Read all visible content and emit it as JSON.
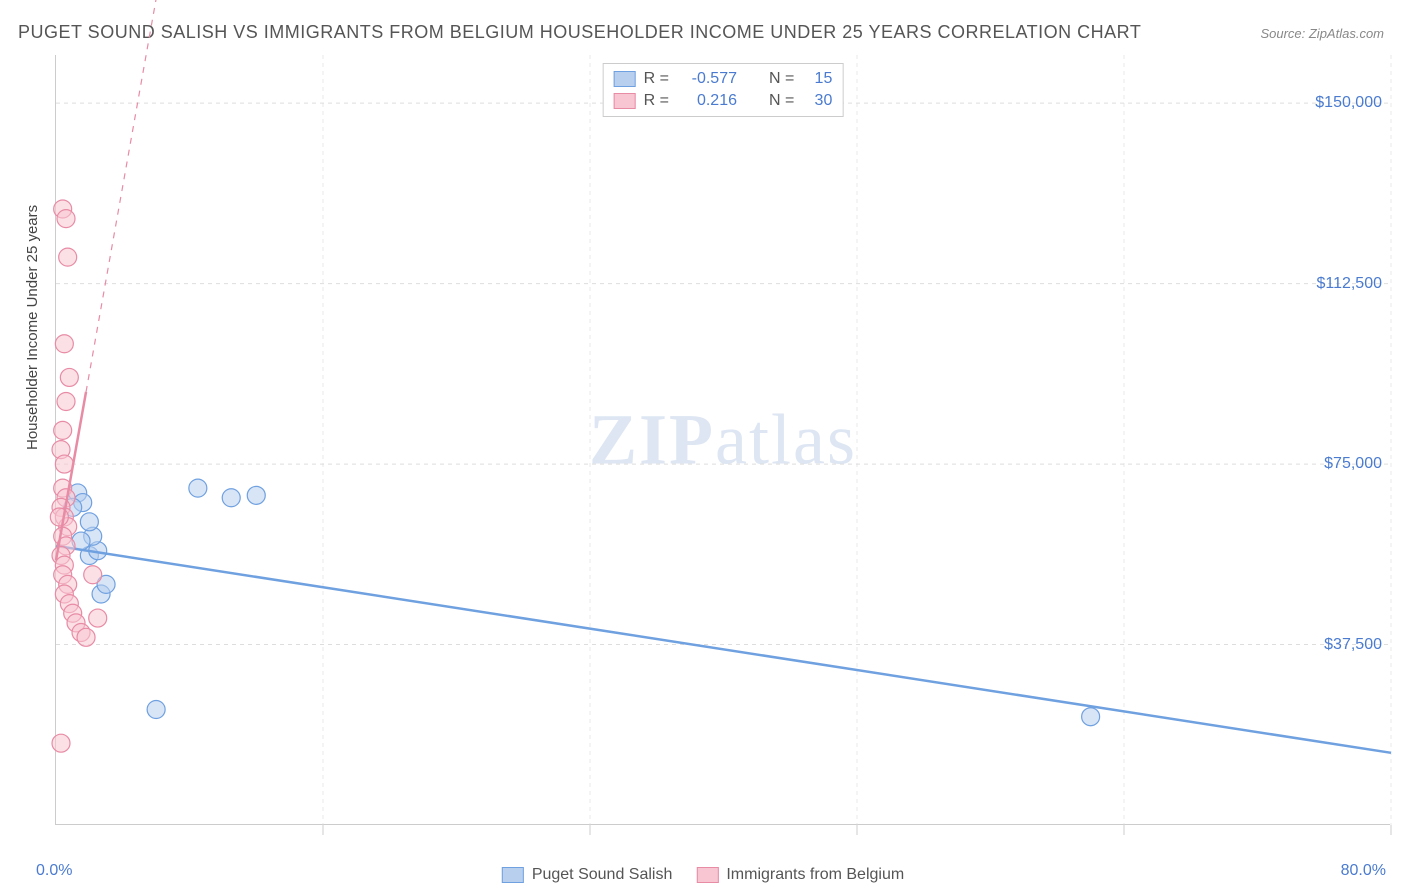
{
  "title": "PUGET SOUND SALISH VS IMMIGRANTS FROM BELGIUM HOUSEHOLDER INCOME UNDER 25 YEARS CORRELATION CHART",
  "source": "Source: ZipAtlas.com",
  "y_axis_label": "Householder Income Under 25 years",
  "watermark_a": "ZIP",
  "watermark_b": "atlas",
  "chart": {
    "type": "scatter",
    "xlim": [
      0,
      80
    ],
    "ylim": [
      0,
      160000
    ],
    "x_min_label": "0.0%",
    "x_max_label": "80.0%",
    "y_ticks": [
      {
        "v": 37500,
        "label": "$37,500"
      },
      {
        "v": 75000,
        "label": "$75,000"
      },
      {
        "v": 112500,
        "label": "$112,500"
      },
      {
        "v": 150000,
        "label": "$150,000"
      }
    ],
    "x_grid": [
      16,
      32,
      48,
      64,
      80
    ],
    "background_color": "#ffffff",
    "grid_color": "#dddddd",
    "axis_color": "#cccccc",
    "label_color": "#4a7bd0",
    "series": [
      {
        "name": "Puget Sound Salish",
        "color_fill": "#b8d0ee",
        "color_stroke": "#6fa0e0",
        "marker_radius": 9,
        "fill_opacity": 0.55,
        "points": [
          [
            1.3,
            69000
          ],
          [
            1.6,
            67000
          ],
          [
            1.0,
            66000
          ],
          [
            2.0,
            56000
          ],
          [
            2.5,
            57000
          ],
          [
            2.7,
            48000
          ],
          [
            3.0,
            50000
          ],
          [
            2.2,
            60000
          ],
          [
            2.0,
            63000
          ],
          [
            8.5,
            70000
          ],
          [
            10.5,
            68000
          ],
          [
            12.0,
            68500
          ],
          [
            6.0,
            24000
          ],
          [
            62.0,
            22500
          ],
          [
            1.5,
            59000
          ]
        ],
        "r_value": "-0.577",
        "n_value": "15",
        "trend": {
          "x1": 0,
          "y1": 58000,
          "x2": 80,
          "y2": 15000,
          "width": 2.5
        }
      },
      {
        "name": "Immigrants from Belgium",
        "color_fill": "#f7c6d2",
        "color_stroke": "#e88ba5",
        "marker_radius": 9,
        "fill_opacity": 0.55,
        "points": [
          [
            0.4,
            128000
          ],
          [
            0.6,
            126000
          ],
          [
            0.7,
            118000
          ],
          [
            0.5,
            100000
          ],
          [
            0.8,
            93000
          ],
          [
            0.6,
            88000
          ],
          [
            0.4,
            82000
          ],
          [
            0.3,
            78000
          ],
          [
            0.5,
            75000
          ],
          [
            0.4,
            70000
          ],
          [
            0.6,
            68000
          ],
          [
            0.3,
            66000
          ],
          [
            0.5,
            64000
          ],
          [
            0.7,
            62000
          ],
          [
            0.4,
            60000
          ],
          [
            0.6,
            58000
          ],
          [
            0.3,
            56000
          ],
          [
            0.5,
            54000
          ],
          [
            0.4,
            52000
          ],
          [
            0.7,
            50000
          ],
          [
            0.5,
            48000
          ],
          [
            0.8,
            46000
          ],
          [
            1.0,
            44000
          ],
          [
            1.2,
            42000
          ],
          [
            1.5,
            40000
          ],
          [
            1.8,
            39000
          ],
          [
            2.2,
            52000
          ],
          [
            2.5,
            43000
          ],
          [
            0.3,
            17000
          ],
          [
            0.2,
            64000
          ]
        ],
        "r_value": "0.216",
        "n_value": "30",
        "trend_solid": {
          "x1": 0,
          "y1": 55000,
          "x2": 1.8,
          "y2": 90000,
          "width": 2.5
        },
        "trend_dash": {
          "x1": 1.8,
          "y1": 90000,
          "x2": 9.0,
          "y2": 230000,
          "width": 1.2
        }
      }
    ]
  },
  "legend_top_prefix_r": "R = ",
  "legend_top_prefix_n": "N = "
}
